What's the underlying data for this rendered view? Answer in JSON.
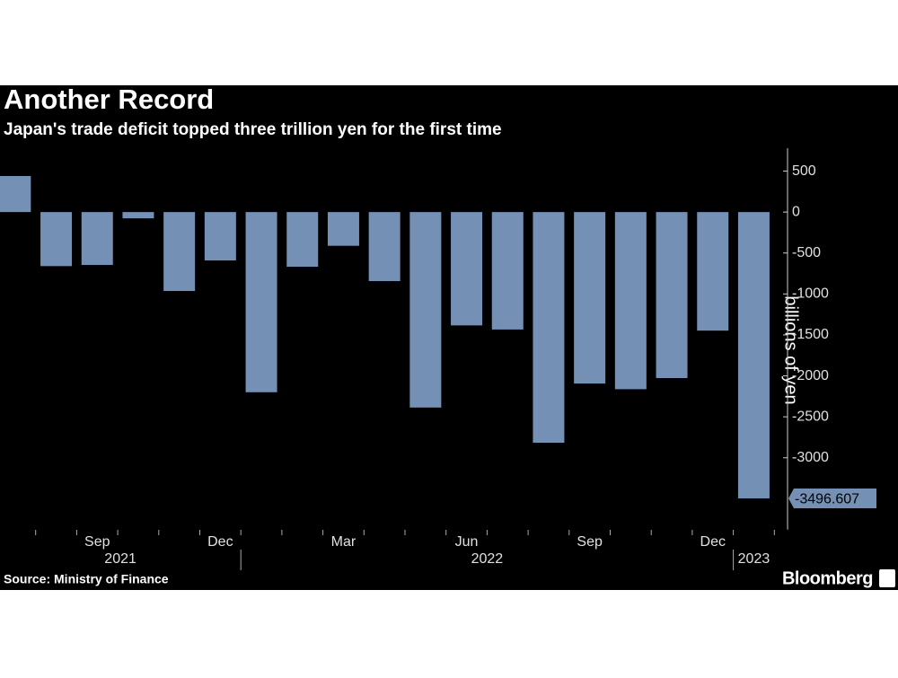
{
  "chart_data": {
    "type": "bar",
    "title": "Another Record",
    "subtitle": "Japan's trade deficit topped three trillion yen for the first time",
    "y_axis_label": "billions of yen",
    "source": "Source: Ministry of Finance",
    "brand": "Bloomberg",
    "categories": [
      null,
      null,
      "Sep",
      null,
      null,
      "Dec",
      null,
      null,
      "Mar",
      null,
      null,
      "Jun",
      null,
      null,
      "Sep",
      null,
      null,
      "Dec",
      null
    ],
    "years": [
      {
        "label": "2021",
        "from": 0,
        "to": 5
      },
      {
        "label": "2022",
        "from": 6,
        "to": 17
      },
      {
        "label": "2023",
        "from": 18,
        "to": 18
      }
    ],
    "values": [
      440,
      -660,
      -646,
      -77,
      -964,
      -591,
      -2200,
      -668,
      -412,
      -843,
      -2387,
      -1384,
      -1434,
      -2817,
      -2094,
      -2163,
      -2027,
      -1448,
      -3496.607
    ],
    "color": "#7590b5",
    "label_last_value": true,
    "ylim": [
      780,
      -3880
    ],
    "yticks": [
      500,
      0,
      -500,
      -1000,
      -1500,
      -2000,
      -2500,
      -3000
    ],
    "y_axis_side": "right"
  }
}
